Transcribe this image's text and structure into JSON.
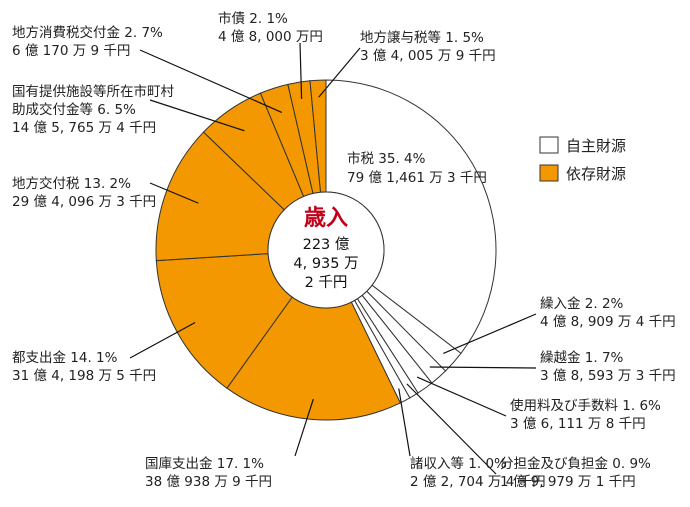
{
  "chart_data": {
    "type": "pie",
    "style": "donut",
    "center": {
      "title": "歳入",
      "lines": [
        "223 億",
        "4, 935 万",
        "2 千円"
      ]
    },
    "legend": {
      "placement": "right",
      "items": [
        {
          "label": "自主財源",
          "color": "#ffffff"
        },
        {
          "label": "依存財源",
          "color": "#f39800"
        }
      ]
    },
    "slices": [
      {
        "name": "市税",
        "percent": 35.4,
        "pct_text": "市税 35. 4%",
        "amount_text": "79 億 1,461 万 3 千円",
        "group": "自主財源"
      },
      {
        "name": "繰入金",
        "percent": 2.2,
        "pct_text": "繰入金 2. 2%",
        "amount_text": "4 億 8, 909 万 4 千円",
        "group": "自主財源"
      },
      {
        "name": "繰越金",
        "percent": 1.7,
        "pct_text": "繰越金 1. 7%",
        "amount_text": "3 億 8, 593 万 3 千円",
        "group": "自主財源"
      },
      {
        "name": "使用料及び手数料",
        "percent": 1.6,
        "pct_text": "使用料及び手数料 1. 6%",
        "amount_text": "3 億 6, 111 万 8 千円",
        "group": "自主財源"
      },
      {
        "name": "分担金及び負担金",
        "percent": 0.9,
        "pct_text": "分担金及び負担金 0. 9%",
        "amount_text": "1 億 9, 979 万 1 千円",
        "group": "自主財源"
      },
      {
        "name": "諸収入等",
        "percent": 1.0,
        "pct_text": "諸収入等 1. 0%",
        "amount_text": "2 億 2, 704 万 4 千円",
        "group": "自主財源"
      },
      {
        "name": "国庫支出金",
        "percent": 17.1,
        "pct_text": "国庫支出金 17. 1%",
        "amount_text": "38 億 938 万 9 千円",
        "group": "依存財源"
      },
      {
        "name": "都支出金",
        "percent": 14.1,
        "pct_text": "都支出金 14. 1%",
        "amount_text": "31 億 4, 198 万 5 千円",
        "group": "依存財源"
      },
      {
        "name": "地方交付税",
        "percent": 13.2,
        "pct_text": "地方交付税 13. 2%",
        "amount_text": "29 億 4, 096 万 3 千円",
        "group": "依存財源"
      },
      {
        "name": "国有提供施設等所在市町村助成交付金等",
        "percent": 6.5,
        "pct_lines": [
          "国有提供施設等所在市町村",
          "助成交付金等 6. 5%"
        ],
        "amount_text": "14 億 5, 765 万 4 千円",
        "group": "依存財源"
      },
      {
        "name": "地方消費税交付金",
        "percent": 2.7,
        "pct_text": "地方消費税交付金 2. 7%",
        "amount_text": "6 億 170 万 9 千円",
        "group": "依存財源"
      },
      {
        "name": "市債",
        "percent": 2.1,
        "pct_text": "市債 2. 1%",
        "amount_text": "4 億 8, 000 万円",
        "group": "依存財源"
      },
      {
        "name": "地方譲与税等",
        "percent": 1.5,
        "pct_text": "地方譲与税等 1. 5%",
        "amount_text": "3 億 4, 005 万 9 千円",
        "group": "依存財源"
      }
    ]
  }
}
